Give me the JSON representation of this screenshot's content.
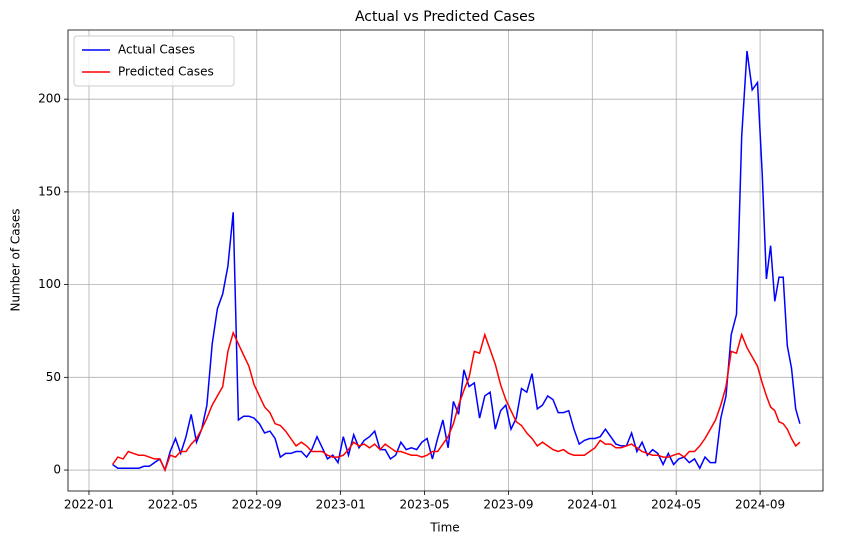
{
  "chart_data": {
    "type": "line",
    "title": "Actual vs Predicted Cases",
    "xlabel": "Time",
    "ylabel": "Number of Cases",
    "x": [
      "2022-02",
      "2022-02",
      "2022-02",
      "2022-02",
      "2022-03",
      "2022-03",
      "2022-03",
      "2022-03",
      "2022-04",
      "2022-04",
      "2022-04",
      "2022-04",
      "2022-05",
      "2022-05",
      "2022-05",
      "2022-05",
      "2022-06",
      "2022-06",
      "2022-06",
      "2022-06",
      "2022-07",
      "2022-07",
      "2022-07",
      "2022-07",
      "2022-08",
      "2022-08",
      "2022-08",
      "2022-08",
      "2022-09",
      "2022-09",
      "2022-09",
      "2022-09",
      "2022-10",
      "2022-10",
      "2022-10",
      "2022-10",
      "2022-11",
      "2022-11",
      "2022-11",
      "2022-11",
      "2022-12",
      "2022-12",
      "2022-12",
      "2022-12",
      "2023-01",
      "2023-01",
      "2023-01",
      "2023-01",
      "2023-02",
      "2023-02",
      "2023-02",
      "2023-02",
      "2023-03",
      "2023-03",
      "2023-03",
      "2023-03",
      "2023-04",
      "2023-04",
      "2023-04",
      "2023-04",
      "2023-05",
      "2023-05",
      "2023-05",
      "2023-05",
      "2023-06",
      "2023-06",
      "2023-06",
      "2023-06",
      "2023-07",
      "2023-07",
      "2023-07",
      "2023-07",
      "2023-08",
      "2023-08",
      "2023-08",
      "2023-08",
      "2023-09",
      "2023-09",
      "2023-09",
      "2023-09",
      "2023-10",
      "2023-10",
      "2023-10",
      "2023-10",
      "2023-11",
      "2023-11",
      "2023-11",
      "2023-11",
      "2023-12",
      "2023-12",
      "2023-12",
      "2023-12",
      "2024-01",
      "2024-01",
      "2024-01",
      "2024-01",
      "2024-02",
      "2024-02",
      "2024-02",
      "2024-02",
      "2024-03",
      "2024-03",
      "2024-03",
      "2024-03",
      "2024-04",
      "2024-04",
      "2024-04",
      "2024-04",
      "2024-05",
      "2024-05",
      "2024-05",
      "2024-05",
      "2024-06",
      "2024-06",
      "2024-06",
      "2024-06",
      "2024-07",
      "2024-07",
      "2024-07",
      "2024-07",
      "2024-08",
      "2024-08",
      "2024-08",
      "2024-08",
      "2024-09",
      "2024-09",
      "2024-09",
      "2024-09",
      "2024-09",
      "2024-10",
      "2024-10",
      "2024-10",
      "2024-10",
      "2024-10"
    ],
    "series": [
      {
        "name": "Actual Cases",
        "color": "#0000ff",
        "values": [
          3,
          1,
          1,
          1,
          1,
          1,
          2,
          2,
          4,
          6,
          0,
          10,
          17,
          9,
          18,
          30,
          15,
          22,
          35,
          68,
          87,
          95,
          110,
          139,
          27,
          29,
          29,
          28,
          25,
          20,
          21,
          17,
          7,
          9,
          9,
          10,
          10,
          7,
          11,
          18,
          12,
          6,
          8,
          4,
          18,
          8,
          19,
          12,
          16,
          18,
          21,
          11,
          11,
          6,
          8,
          15,
          11,
          12,
          11,
          15,
          17,
          6,
          17,
          27,
          12,
          37,
          30,
          54,
          45,
          47,
          28,
          40,
          42,
          22,
          32,
          35,
          22,
          28,
          44,
          42,
          52,
          33,
          35,
          40,
          38,
          31,
          31,
          32,
          22,
          14,
          16,
          17,
          17,
          18,
          22,
          18,
          14,
          13,
          13,
          20,
          10,
          15,
          8,
          11,
          9,
          3,
          9,
          3,
          6,
          7,
          4,
          6,
          1,
          7,
          4,
          4,
          28,
          40,
          73,
          84,
          180,
          226,
          205,
          209,
          160,
          103,
          121,
          91,
          104,
          104,
          67,
          55,
          33,
          25
        ]
      },
      {
        "name": "Predicted Cases",
        "color": "#ff0000",
        "values": [
          3,
          7,
          6,
          10,
          9,
          8,
          8,
          7,
          6,
          6,
          0,
          8,
          7,
          10,
          10,
          14,
          17,
          22,
          28,
          35,
          40,
          45,
          64,
          74,
          68,
          62,
          56,
          46,
          40,
          34,
          31,
          25,
          24,
          21,
          17,
          13,
          15,
          13,
          10,
          10,
          10,
          8,
          7,
          7,
          8,
          11,
          15,
          13,
          14,
          12,
          14,
          11,
          14,
          12,
          10,
          10,
          9,
          8,
          8,
          7,
          8,
          10,
          10,
          14,
          18,
          25,
          35,
          43,
          50,
          64,
          63,
          73,
          65,
          57,
          46,
          38,
          32,
          26,
          24,
          20,
          17,
          13,
          15,
          13,
          11,
          10,
          11,
          9,
          8,
          8,
          8,
          10,
          12,
          16,
          14,
          14,
          12,
          12,
          13,
          14,
          12,
          10,
          9,
          8,
          8,
          7,
          7,
          8,
          9,
          7,
          10,
          10,
          13,
          17,
          22,
          27,
          35,
          45,
          64,
          63,
          73,
          66,
          61,
          56,
          47,
          40,
          34,
          32,
          26,
          25,
          22,
          17,
          13,
          15
        ]
      }
    ],
    "xlim": [
      "2021-12",
      "2024-12"
    ],
    "xticks": [
      "2022-01",
      "2022-05",
      "2022-09",
      "2023-01",
      "2023-05",
      "2023-09",
      "2024-01",
      "2024-05",
      "2024-09"
    ],
    "ylim": [
      -11.3,
      237.3
    ],
    "yticks": [
      0,
      50,
      100,
      150,
      200
    ],
    "grid": true,
    "legend": "upper-left"
  }
}
